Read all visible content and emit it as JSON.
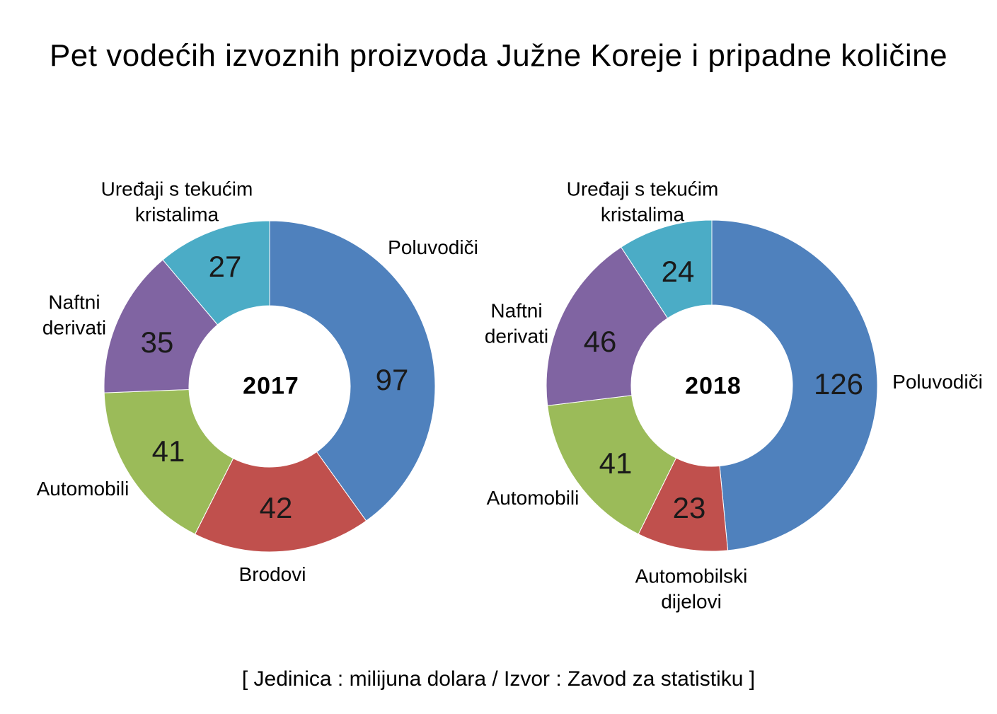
{
  "title": "Pet vodećih izvoznih proizvoda Južne Koreje i pripadne količine",
  "footnote": "[ Jedinica : milijuna dolara / Izvor : Zavod za statistiku ]",
  "chart_data": [
    {
      "type": "pie",
      "subtype": "donut",
      "center_label": "2017",
      "categories": [
        "Poluvodiči",
        "Brodovi",
        "Automobili",
        "Naftni derivati",
        "Uređaji s tekućim kristalima"
      ],
      "values": [
        97,
        42,
        41,
        35,
        27
      ],
      "colors": [
        "#4F81BD",
        "#C0504D",
        "#9BBB59",
        "#8064A2",
        "#4BACC6"
      ],
      "start_angle_deg": 0,
      "direction": "clockwise",
      "unit": "milijuna dolara",
      "legend_position": "none"
    },
    {
      "type": "pie",
      "subtype": "donut",
      "center_label": "2018",
      "categories": [
        "Poluvodiči",
        "Automobilski dijelovi",
        "Automobili",
        "Naftni derivati",
        "Uređaji s tekućim kristalima"
      ],
      "values": [
        126,
        23,
        41,
        46,
        24
      ],
      "colors": [
        "#4F81BD",
        "#C0504D",
        "#9BBB59",
        "#8064A2",
        "#4BACC6"
      ],
      "start_angle_deg": 0,
      "direction": "clockwise",
      "unit": "milijuna dolara",
      "legend_position": "none"
    }
  ]
}
